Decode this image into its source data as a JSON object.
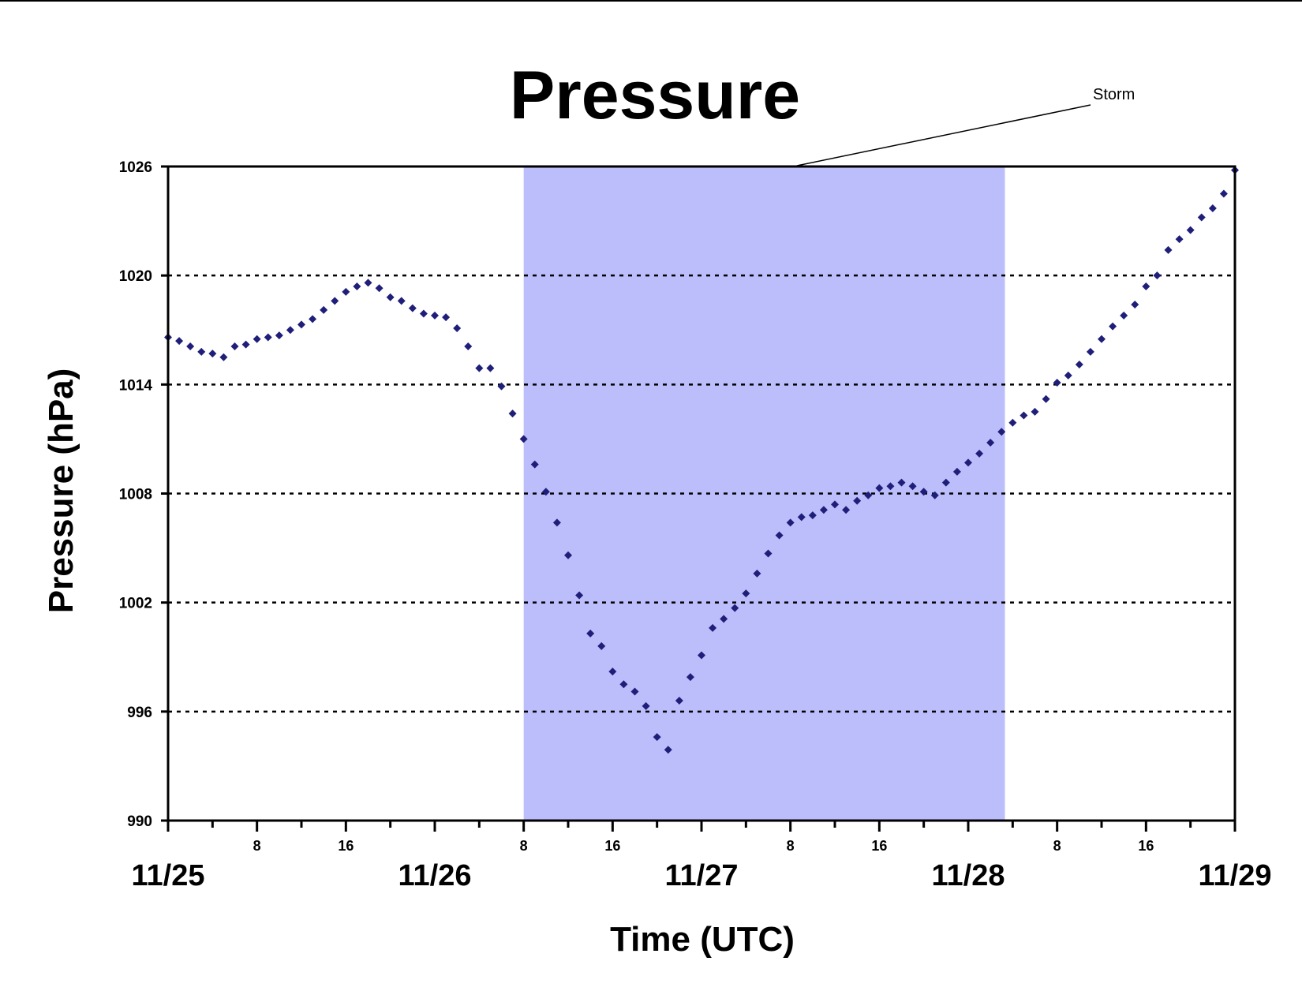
{
  "chart_data": {
    "type": "scatter",
    "title": "Pressure",
    "xlabel": "Time (UTC)",
    "ylabel": "Pressure (hPa)",
    "ylim": [
      990,
      1026
    ],
    "yticks": [
      "990",
      "996",
      "1002",
      "1008",
      "1014",
      "1020",
      "1026"
    ],
    "ytick_values": [
      990,
      996,
      1002,
      1008,
      1014,
      1020,
      1026
    ],
    "x_unit": "hours since 11/25 00 UTC",
    "xlim": [
      0,
      96
    ],
    "date_labels": [
      {
        "hour": 0,
        "label": "11/25"
      },
      {
        "hour": 24,
        "label": "11/26"
      },
      {
        "hour": 48,
        "label": "11/27"
      },
      {
        "hour": 72,
        "label": "11/28"
      },
      {
        "hour": 96,
        "label": "11/29"
      }
    ],
    "hour_labels": [
      {
        "hour": 8,
        "label": "8"
      },
      {
        "hour": 16,
        "label": "16"
      },
      {
        "hour": 32,
        "label": "8"
      },
      {
        "hour": 40,
        "label": "16"
      },
      {
        "hour": 56,
        "label": "8"
      },
      {
        "hour": 64,
        "label": "16"
      },
      {
        "hour": 80,
        "label": "8"
      },
      {
        "hour": 88,
        "label": "16"
      }
    ],
    "major_ticks": [
      0,
      8,
      16,
      24,
      32,
      40,
      48,
      56,
      64,
      72,
      80,
      88,
      96
    ],
    "minor_ticks": [
      4,
      12,
      20,
      28,
      36,
      44,
      52,
      60,
      68,
      76,
      84,
      92
    ],
    "grid": "horizontal-dotted",
    "shaded_region": {
      "label": "Storm",
      "x_start": 32,
      "x_end": 75.3,
      "color": "#bcbdfb"
    },
    "annotation": {
      "text": "Storm"
    },
    "series": [
      {
        "color": "#1f1f7a",
        "marker": "diamond",
        "points": [
          [
            0,
            1016.6
          ],
          [
            1,
            1016.4
          ],
          [
            2,
            1016.1
          ],
          [
            3,
            1015.8
          ],
          [
            4,
            1015.7
          ],
          [
            5,
            1015.5
          ],
          [
            6,
            1016.1
          ],
          [
            7,
            1016.2
          ],
          [
            8,
            1016.5
          ],
          [
            9,
            1016.6
          ],
          [
            10,
            1016.7
          ],
          [
            11,
            1017.0
          ],
          [
            12,
            1017.3
          ],
          [
            13,
            1017.6
          ],
          [
            14,
            1018.1
          ],
          [
            15,
            1018.6
          ],
          [
            16,
            1019.1
          ],
          [
            17,
            1019.4
          ],
          [
            18,
            1019.6
          ],
          [
            19,
            1019.3
          ],
          [
            20,
            1018.8
          ],
          [
            21,
            1018.6
          ],
          [
            22,
            1018.2
          ],
          [
            23,
            1017.9
          ],
          [
            24,
            1017.8
          ],
          [
            25,
            1017.7
          ],
          [
            26,
            1017.1
          ],
          [
            27,
            1016.1
          ],
          [
            28,
            1014.9
          ],
          [
            29,
            1014.9
          ],
          [
            30,
            1013.9
          ],
          [
            31,
            1012.4
          ],
          [
            32,
            1011.0
          ],
          [
            33,
            1009.6
          ],
          [
            34,
            1008.1
          ],
          [
            35,
            1006.4
          ],
          [
            36,
            1004.6
          ],
          [
            37,
            1002.4
          ],
          [
            38,
            1000.3
          ],
          [
            39,
            999.6
          ],
          [
            40,
            998.2
          ],
          [
            41,
            997.5
          ],
          [
            42,
            997.1
          ],
          [
            43,
            996.3
          ],
          [
            44,
            994.6
          ],
          [
            45,
            993.9
          ],
          [
            46,
            996.6
          ],
          [
            47,
            997.9
          ],
          [
            48,
            999.1
          ],
          [
            49,
            1000.6
          ],
          [
            50,
            1001.1
          ],
          [
            51,
            1001.7
          ],
          [
            52,
            1002.5
          ],
          [
            53,
            1003.6
          ],
          [
            54,
            1004.7
          ],
          [
            55,
            1005.7
          ],
          [
            56,
            1006.4
          ],
          [
            57,
            1006.7
          ],
          [
            58,
            1006.8
          ],
          [
            59,
            1007.1
          ],
          [
            60,
            1007.4
          ],
          [
            61,
            1007.1
          ],
          [
            62,
            1007.6
          ],
          [
            63,
            1007.9
          ],
          [
            64,
            1008.3
          ],
          [
            65,
            1008.4
          ],
          [
            66,
            1008.6
          ],
          [
            67,
            1008.4
          ],
          [
            68,
            1008.1
          ],
          [
            69,
            1007.9
          ],
          [
            70,
            1008.6
          ],
          [
            71,
            1009.2
          ],
          [
            72,
            1009.7
          ],
          [
            73,
            1010.2
          ],
          [
            74,
            1010.8
          ],
          [
            75,
            1011.4
          ],
          [
            76,
            1011.9
          ],
          [
            77,
            1012.3
          ],
          [
            78,
            1012.5
          ],
          [
            79,
            1013.2
          ],
          [
            80,
            1014.1
          ],
          [
            81,
            1014.5
          ],
          [
            82,
            1015.1
          ],
          [
            83,
            1015.8
          ],
          [
            84,
            1016.5
          ],
          [
            85,
            1017.2
          ],
          [
            86,
            1017.8
          ],
          [
            87,
            1018.4
          ],
          [
            88,
            1019.4
          ],
          [
            89,
            1020.0
          ],
          [
            90,
            1021.4
          ],
          [
            91,
            1022.0
          ],
          [
            92,
            1022.5
          ],
          [
            93,
            1023.2
          ],
          [
            94,
            1023.7
          ],
          [
            95,
            1024.5
          ],
          [
            96,
            1025.8
          ]
        ]
      }
    ]
  }
}
